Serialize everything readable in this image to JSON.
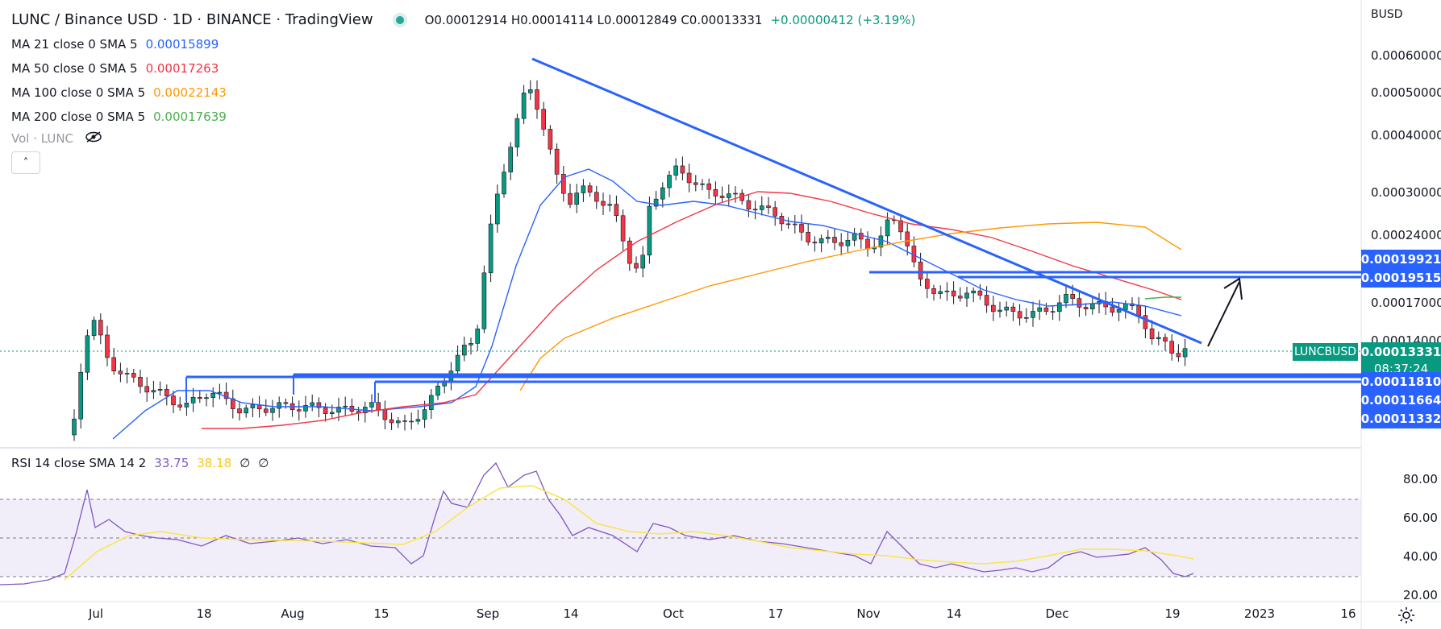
{
  "header": {
    "title": "LUNC / Binance USD · 1D · BINANCE · TradingView",
    "ohlc": "O0.00012914 H0.00014114 L0.00012849 C0.00013331",
    "change": "+0.00000412 (+3.19%)"
  },
  "indicators": [
    {
      "label": "MA 21 close 0 SMA 5",
      "value": "0.00015899",
      "color": "#2962ff"
    },
    {
      "label": "MA 50 close 0 SMA 5",
      "value": "0.00017263",
      "color": "#f23645"
    },
    {
      "label": "MA 100 close 0 SMA 5",
      "value": "0.00022143",
      "color": "#ff9800"
    },
    {
      "label": "MA 200 close 0 SMA 5",
      "value": "0.00017639",
      "color": "#4caf50"
    }
  ],
  "volume": {
    "label": "Vol · LUNC",
    "icon": "eye-crossed-icon"
  },
  "rsi": {
    "label": "RSI 14 close SMA 14 2",
    "value1": "33.75",
    "value2": "38.18",
    "value3": "∅",
    "value4": "∅"
  },
  "price_axis": {
    "currency": "BUSD",
    "labels": [
      "0.00060000",
      "0.00050000",
      "0.00040000",
      "0.00030000",
      "0.00024000",
      "0.00017000",
      "0.00014000"
    ],
    "rsi_labels": [
      "80.00",
      "60.00",
      "40.00",
      "20.00"
    ]
  },
  "badges": {
    "res1": "0.00019921",
    "res2": "0.00019515",
    "symbol": "LUNCBUSD",
    "last": "0.00013331",
    "countdown": "08:37:24",
    "sup1": "0.00011810",
    "sup2": "0.00011664",
    "sup3": "0.00011332"
  },
  "time_axis": [
    "Jul",
    "18",
    "Aug",
    "15",
    "Sep",
    "14",
    "Oct",
    "17",
    "Nov",
    "14",
    "Dec",
    "19",
    "2023",
    "16"
  ],
  "colors": {
    "up": "#089981",
    "down": "#f23645",
    "trendline": "#2962ff",
    "rsi": "#7e57c2",
    "rsi_ma": "#f9e54a"
  }
}
